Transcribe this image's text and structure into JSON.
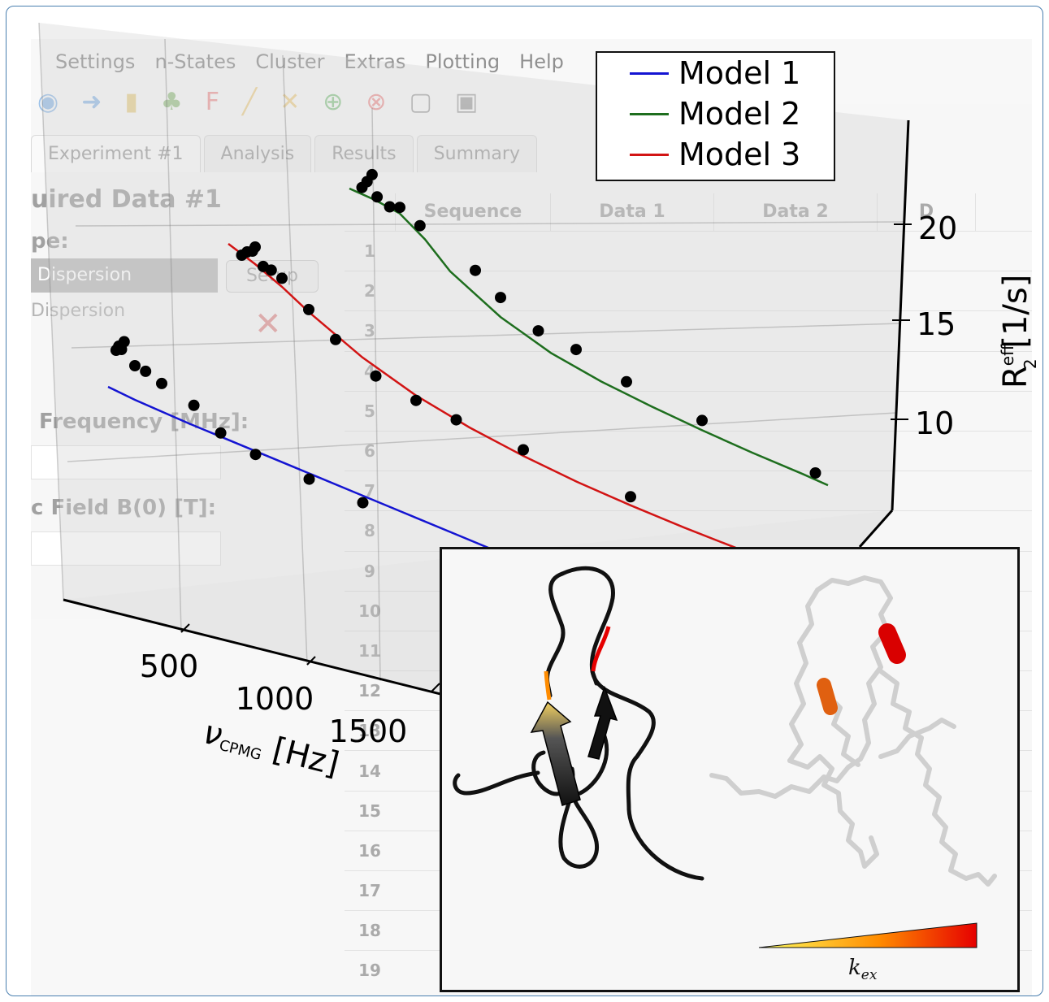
{
  "app_ui": {
    "menu": [
      "Settings",
      "n-States",
      "Cluster",
      "Extras",
      "Plotting",
      "Help"
    ],
    "tabs": [
      "Experiment #1",
      "Analysis",
      "Results",
      "Summary"
    ],
    "panel_title": "uired Data #1",
    "type_label": "pe:",
    "selected_type": "Dispersion",
    "other_type": "Dispersion",
    "setup_button": "Setup",
    "frequency_label": "Frequency [MHz]:",
    "field_label": "c Field B(0) [T]:",
    "table_headers": [
      "",
      "Sequence",
      "Data 1",
      "Data 2",
      "D"
    ],
    "row_numbers": [
      "1",
      "2",
      "3",
      "4",
      "5",
      "6",
      "7",
      "8",
      "9",
      "10",
      "11",
      "12",
      "13",
      "14",
      "15",
      "16",
      "17",
      "18",
      "19"
    ]
  },
  "chart_data": {
    "type": "line",
    "projection": "3d",
    "xlabel": "νCPMG [Hz]",
    "xlabel_main": "ν",
    "xlabel_sub": "CPMG",
    "xlabel_unit": "[Hz]",
    "ylabel": "R2eff [1/s]",
    "ylabel_main": "R",
    "ylabel_sub": "2",
    "ylabel_sup": "eff",
    "ylabel_unit": "[1/s]",
    "x_ticks": [
      "500",
      "1000",
      "1500"
    ],
    "y_ticks": [
      "10",
      "15",
      "20"
    ],
    "legend_position": "top-right",
    "legend_entries": [
      "Model 1",
      "Model 2",
      "Model 3"
    ],
    "series": [
      {
        "name": "Model 1",
        "color": "#1414d2",
        "x": [
          100,
          200,
          400,
          600,
          800,
          1000,
          1200,
          1400,
          1600,
          1800,
          2000
        ],
        "y": [
          12.0,
          11.6,
          11.0,
          10.5,
          10.0,
          9.5,
          9.0,
          8.5,
          8.0,
          7.6,
          7.2
        ]
      },
      {
        "name": "Model 2",
        "color": "#1e6e1e",
        "x": [
          100,
          200,
          300,
          400,
          500,
          700,
          900,
          1100,
          1300,
          1500,
          1700,
          1900,
          2000
        ],
        "y": [
          22.8,
          22.5,
          22.0,
          20.5,
          18.5,
          16.0,
          14.3,
          13.2,
          12.4,
          11.7,
          11.1,
          10.6,
          10.3
        ]
      },
      {
        "name": "Model 3",
        "color": "#d21414",
        "x": [
          100,
          200,
          300,
          400,
          600,
          800,
          1000,
          1200,
          1400,
          1600,
          1800,
          2000
        ],
        "y": [
          20.0,
          19.0,
          17.8,
          16.4,
          14.0,
          12.2,
          10.9,
          9.9,
          9.1,
          8.5,
          8.0,
          7.6
        ]
      }
    ],
    "points_model1": [
      [
        130,
        15.2
      ],
      [
        140,
        15.6
      ],
      [
        150,
        15.4
      ],
      [
        160,
        16.1
      ],
      [
        200,
        14.4
      ],
      [
        240,
        14.2
      ],
      [
        300,
        13.6
      ],
      [
        420,
        12.6
      ],
      [
        520,
        11.0
      ],
      [
        650,
        10.1
      ],
      [
        850,
        9.4
      ],
      [
        1050,
        8.8
      ]
    ],
    "points_model3": [
      [
        150,
        19.4
      ],
      [
        170,
        19.8
      ],
      [
        190,
        20.0
      ],
      [
        200,
        20.4
      ],
      [
        230,
        19.0
      ],
      [
        260,
        18.9
      ],
      [
        300,
        18.5
      ],
      [
        400,
        16.6
      ],
      [
        500,
        14.8
      ],
      [
        650,
        12.8
      ],
      [
        800,
        11.8
      ],
      [
        950,
        11.2
      ],
      [
        1200,
        10.4
      ],
      [
        1600,
        9.2
      ]
    ],
    "points_model2": [
      [
        150,
        23.2
      ],
      [
        170,
        23.8
      ],
      [
        190,
        24.5
      ],
      [
        210,
        22.8
      ],
      [
        260,
        22.3
      ],
      [
        300,
        22.5
      ],
      [
        380,
        21.5
      ],
      [
        600,
        19.2
      ],
      [
        700,
        17.6
      ],
      [
        850,
        15.8
      ],
      [
        1000,
        15.2
      ],
      [
        1200,
        13.8
      ],
      [
        1500,
        12.5
      ],
      [
        1950,
        11.0
      ]
    ],
    "inset": {
      "colorbar_label": "k",
      "colorbar_label_sub": "ex",
      "colorbar_colors": [
        "#ffff60",
        "#ff8c00",
        "#e60000"
      ]
    }
  }
}
